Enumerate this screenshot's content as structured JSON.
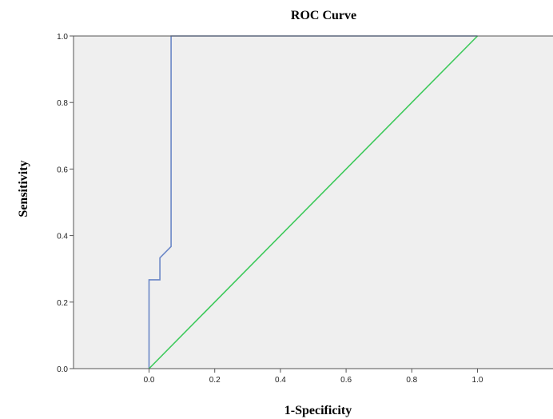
{
  "chart_data": {
    "type": "line",
    "title": "ROC Curve",
    "xlabel": "1-Specificity",
    "ylabel": "Sensitivity",
    "xlim": [
      -0.23,
      1.23
    ],
    "ylim": [
      0,
      1.0
    ],
    "x_ticks": [
      "0.0",
      "0.2",
      "0.4",
      "0.6",
      "0.8",
      "1.0"
    ],
    "y_ticks": [
      "0.0",
      "0.2",
      "0.4",
      "0.6",
      "0.8",
      "1.0"
    ],
    "grid": false,
    "legend": "none",
    "series": [
      {
        "color": "#6b87c7",
        "x": [
          0.0,
          0.0,
          0.033,
          0.033,
          0.067,
          0.067,
          1.0
        ],
        "y": [
          0.0,
          0.267,
          0.267,
          0.333,
          0.367,
          1.0,
          1.0
        ]
      },
      {
        "color": "#3cc95a",
        "x": [
          0.0,
          1.0
        ],
        "y": [
          0.0,
          1.0
        ]
      }
    ],
    "plot_background": "#efefef"
  }
}
